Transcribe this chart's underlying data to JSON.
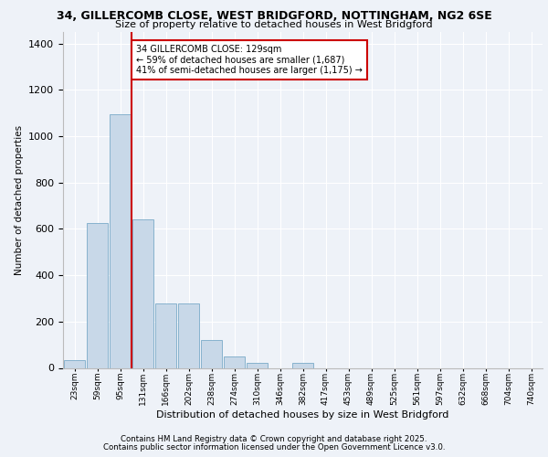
{
  "title1": "34, GILLERCOMB CLOSE, WEST BRIDGFORD, NOTTINGHAM, NG2 6SE",
  "title2": "Size of property relative to detached houses in West Bridgford",
  "xlabel": "Distribution of detached houses by size in West Bridgford",
  "ylabel": "Number of detached properties",
  "bin_labels": [
    "23sqm",
    "59sqm",
    "95sqm",
    "131sqm",
    "166sqm",
    "202sqm",
    "238sqm",
    "274sqm",
    "310sqm",
    "346sqm",
    "382sqm",
    "417sqm",
    "453sqm",
    "489sqm",
    "525sqm",
    "561sqm",
    "597sqm",
    "632sqm",
    "668sqm",
    "704sqm",
    "740sqm"
  ],
  "bar_values": [
    35,
    625,
    1095,
    640,
    280,
    280,
    120,
    50,
    20,
    0,
    20,
    0,
    0,
    0,
    0,
    0,
    0,
    0,
    0,
    0,
    0
  ],
  "bar_color": "#c8d8e8",
  "bar_edge_color": "#7aaac8",
  "vline_color": "#cc0000",
  "annotation_text": "34 GILLERCOMB CLOSE: 129sqm\n← 59% of detached houses are smaller (1,687)\n41% of semi-detached houses are larger (1,175) →",
  "annotation_box_color": "#ffffff",
  "annotation_box_edge": "#cc0000",
  "ylim": [
    0,
    1450
  ],
  "yticks": [
    0,
    200,
    400,
    600,
    800,
    1000,
    1200,
    1400
  ],
  "bg_color": "#eef2f8",
  "plot_bg_color": "#eef2f8",
  "footer1": "Contains HM Land Registry data © Crown copyright and database right 2025.",
  "footer2": "Contains public sector information licensed under the Open Government Licence v3.0."
}
